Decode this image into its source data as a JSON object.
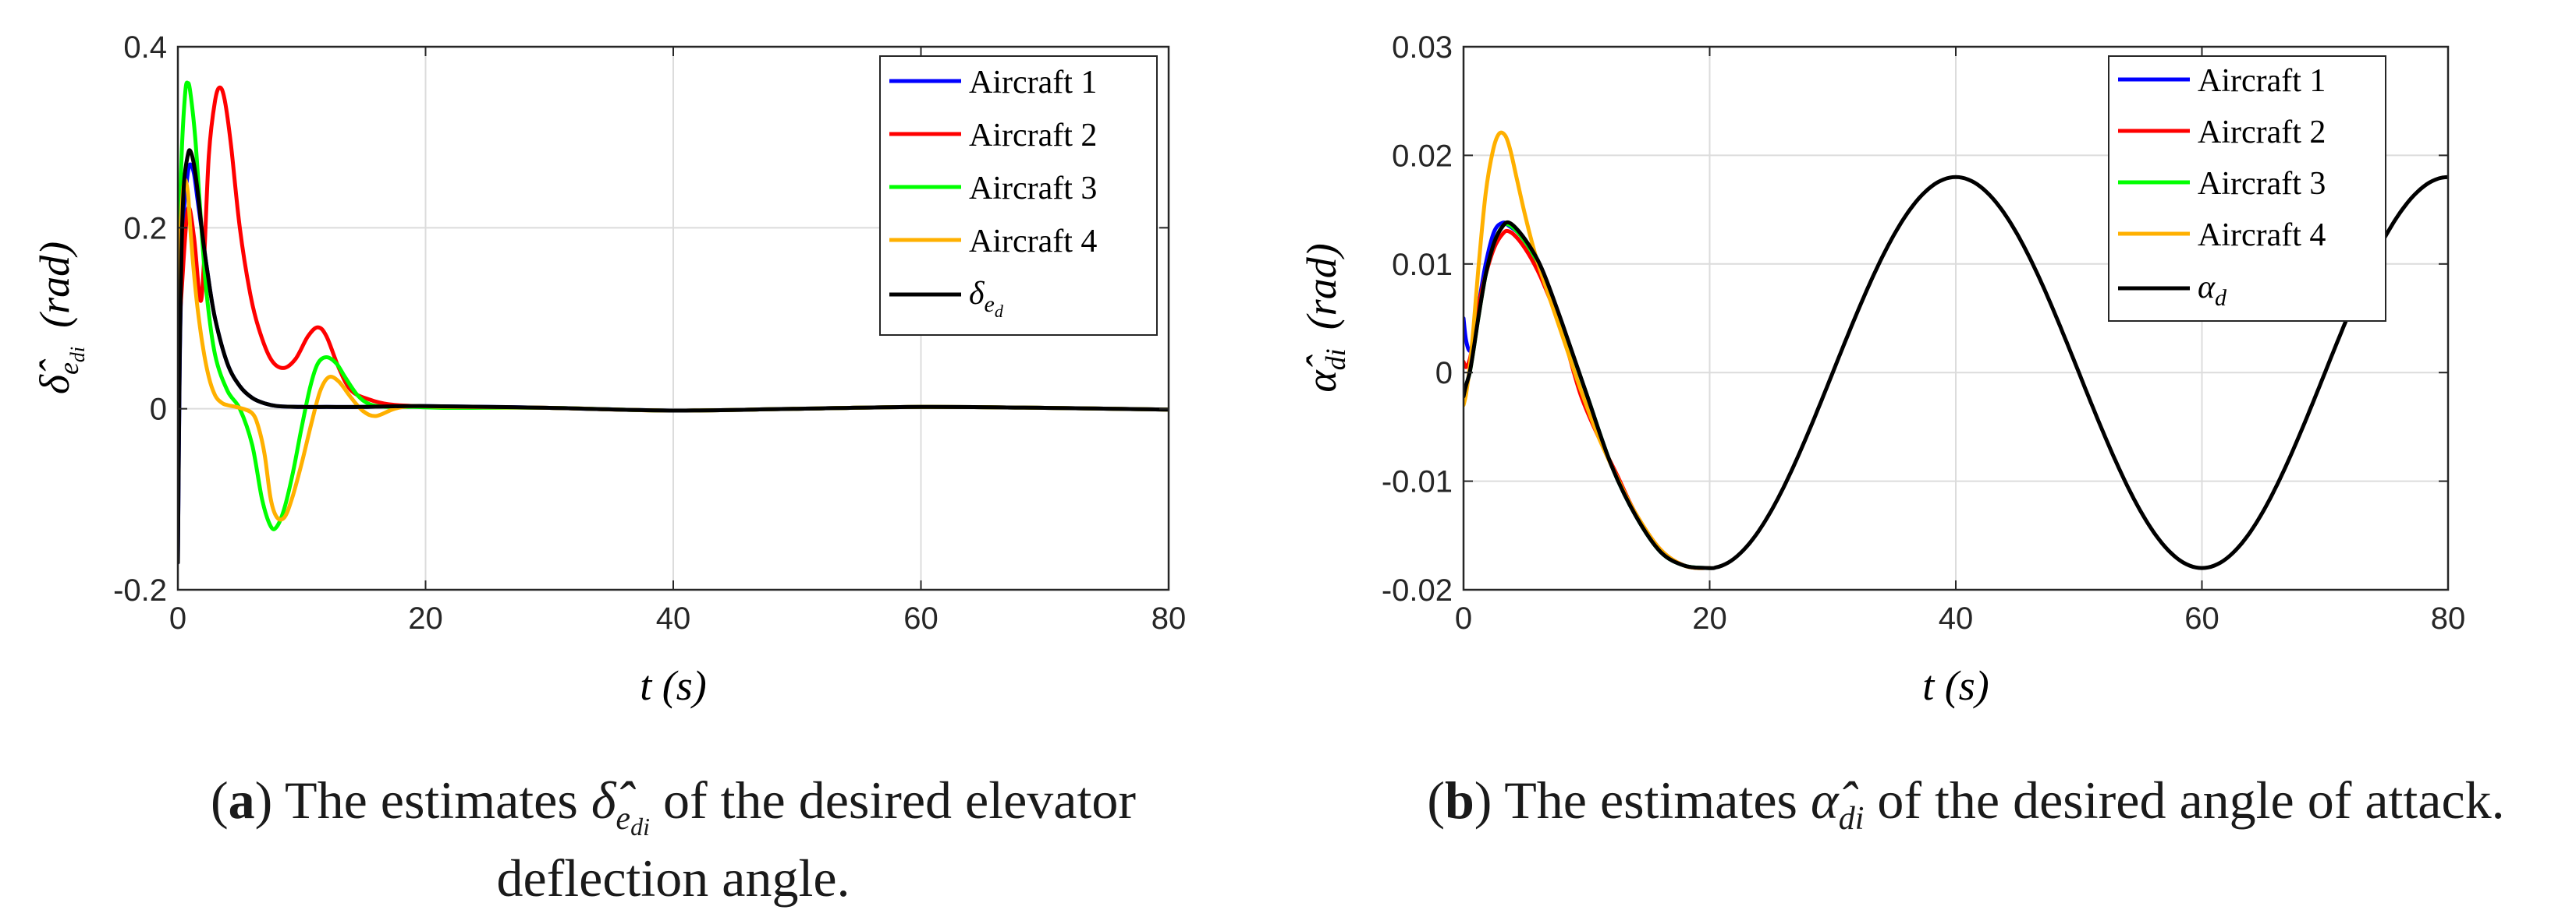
{
  "chart_data": [
    {
      "type": "line",
      "panel": "a",
      "caption": {
        "label": "a",
        "line1_pre": "The estimates ",
        "symbol": "δ̂̂",
        "symbol_sub": "e",
        "symbol_sub2": "di",
        "line1_post": " of the desired elevator",
        "line2": "deflection angle."
      },
      "xlabel": "t (s)",
      "ylabel": "δ̂",
      "ylabel_sub": "e",
      "ylabel_sub2": "di",
      "ylabel_unit": "(rad)",
      "xlim": [
        0,
        80
      ],
      "ylim": [
        -0.2,
        0.4
      ],
      "xticks": [
        0,
        20,
        40,
        60,
        80
      ],
      "yticks": [
        -0.2,
        0,
        0.2,
        0.4
      ],
      "xtick_labels": [
        "0",
        "20",
        "40",
        "60",
        "80"
      ],
      "ytick_labels": [
        "-0.2",
        "0",
        "0.2",
        "0.4"
      ],
      "grid": true,
      "legend_position": "top-right",
      "series": [
        {
          "name": "Aircraft 1",
          "color": "#0000ff",
          "x": [
            0,
            0.15,
            0.3,
            0.5,
            0.8,
            1.0,
            1.3,
            1.6,
            2.0,
            2.4,
            3.0,
            4.0,
            5.0,
            6.0,
            7.0,
            8.0,
            10,
            12,
            15,
            20,
            30,
            40,
            50,
            60,
            70,
            80
          ],
          "y": [
            -0.17,
            0.05,
            0.15,
            0.22,
            0.26,
            0.27,
            0.26,
            0.23,
            0.19,
            0.15,
            0.1,
            0.05,
            0.025,
            0.012,
            0.006,
            0.003,
            0.002,
            0.002,
            0.002,
            0.003,
            0.001,
            -0.002,
            0,
            0.002,
            0.001,
            -0.001
          ]
        },
        {
          "name": "Aircraft 2",
          "color": "#ff0000",
          "x": [
            0,
            0.3,
            0.8,
            1.3,
            1.8,
            2.1,
            2.5,
            3.0,
            3.4,
            3.8,
            4.3,
            5.0,
            5.8,
            6.5,
            7.5,
            8.5,
            9.5,
            10.5,
            11.3,
            12.0,
            13.0,
            14.0,
            15.5,
            17.0,
            19.0,
            22.0,
            30,
            40,
            50,
            60,
            70,
            80
          ],
          "y": [
            0.06,
            0.13,
            0.22,
            0.19,
            0.12,
            0.16,
            0.28,
            0.34,
            0.355,
            0.34,
            0.29,
            0.2,
            0.13,
            0.09,
            0.055,
            0.045,
            0.055,
            0.08,
            0.09,
            0.08,
            0.045,
            0.02,
            0.01,
            0.005,
            0.003,
            0.002,
            0.001,
            -0.002,
            0,
            0.002,
            0.001,
            -0.001
          ]
        },
        {
          "name": "Aircraft 3",
          "color": "#00ff00",
          "x": [
            0,
            0.3,
            0.6,
            0.8,
            1.0,
            1.4,
            1.8,
            2.3,
            3.0,
            4.0,
            5.0,
            6.0,
            6.8,
            7.5,
            8.0,
            8.6,
            9.3,
            10.0,
            10.7,
            11.3,
            12.0,
            12.8,
            13.5,
            14.5,
            15.5,
            17.0,
            19.0,
            22.0,
            30,
            40,
            50,
            60,
            70,
            80
          ],
          "y": [
            0.15,
            0.28,
            0.35,
            0.36,
            0.35,
            0.3,
            0.22,
            0.13,
            0.06,
            0.02,
            0.0,
            -0.04,
            -0.1,
            -0.13,
            -0.13,
            -0.11,
            -0.07,
            -0.02,
            0.025,
            0.05,
            0.057,
            0.05,
            0.035,
            0.015,
            0.005,
            0.002,
            0.002,
            0.001,
            0.001,
            -0.002,
            0,
            0.002,
            0.001,
            -0.001
          ]
        },
        {
          "name": "Aircraft 4",
          "color": "#ffb000",
          "x": [
            0,
            0.2,
            0.5,
            0.8,
            1.0,
            1.3,
            1.6,
            2.0,
            2.5,
            3.0,
            3.5,
            4.0,
            5.0,
            6.0,
            6.5,
            7.0,
            7.5,
            8.0,
            8.6,
            9.2,
            10.0,
            10.8,
            11.5,
            12.2,
            13.0,
            14.0,
            15.0,
            16.0,
            17.5,
            19.0,
            22.0,
            30,
            40,
            50,
            60,
            70,
            80
          ],
          "y": [
            0.06,
            0.19,
            0.25,
            0.24,
            0.2,
            0.15,
            0.11,
            0.07,
            0.035,
            0.015,
            0.007,
            0.004,
            0.001,
            -0.005,
            -0.02,
            -0.05,
            -0.1,
            -0.12,
            -0.12,
            -0.1,
            -0.06,
            -0.015,
            0.02,
            0.035,
            0.03,
            0.012,
            -0.003,
            -0.008,
            0.0,
            0.003,
            0.002,
            0.001,
            -0.002,
            0,
            0.002,
            0.001,
            -0.001
          ]
        },
        {
          "name": "δ",
          "name_sub": "e",
          "name_sub2": "d",
          "color": "#000000",
          "x": [
            0,
            0.15,
            0.3,
            0.5,
            0.8,
            1.0,
            1.3,
            1.6,
            2.0,
            2.4,
            3.0,
            4.0,
            5.0,
            6.0,
            7.0,
            8.0,
            10,
            12,
            15,
            20,
            30,
            40,
            50,
            60,
            70,
            80
          ],
          "y": [
            -0.17,
            0.06,
            0.18,
            0.25,
            0.28,
            0.285,
            0.27,
            0.24,
            0.19,
            0.15,
            0.1,
            0.05,
            0.025,
            0.012,
            0.006,
            0.003,
            0.002,
            0.002,
            0.002,
            0.003,
            0.001,
            -0.002,
            0,
            0.002,
            0.001,
            -0.001
          ]
        }
      ]
    },
    {
      "type": "line",
      "panel": "b",
      "caption": {
        "label": "b",
        "line1_pre": "The estimates ",
        "symbol": "α̂",
        "symbol_sub": "di",
        "line1_post": " of the desired angle of attack."
      },
      "xlabel": "t (s)",
      "ylabel": "α̂",
      "ylabel_sub": "di",
      "ylabel_unit": "(rad)",
      "xlim": [
        0,
        80
      ],
      "ylim": [
        -0.02,
        0.03
      ],
      "xticks": [
        0,
        20,
        40,
        60,
        80
      ],
      "yticks": [
        -0.02,
        -0.01,
        0,
        0.01,
        0.02,
        0.03
      ],
      "xtick_labels": [
        "0",
        "20",
        "40",
        "60",
        "80"
      ],
      "ytick_labels": [
        "-0.02",
        "-0.01",
        "0",
        "0.01",
        "0.02",
        "0.03"
      ],
      "grid": true,
      "legend_position": "top-right",
      "series": [
        {
          "name": "Aircraft 1",
          "color": "#0000ff",
          "x": [
            0,
            0.2,
            0.5,
            0.8,
            1.2,
            1.8,
            2.5,
            3.2,
            3.7,
            4.5,
            5.5,
            6.5,
            8.0,
            10.0,
            12.0,
            14.0,
            16.0,
            18.0,
            20.0
          ],
          "y": [
            0.005,
            0.003,
            0.002,
            0.003,
            0.006,
            0.01,
            0.013,
            0.0138,
            0.0135,
            0.0128,
            0.0112,
            0.009,
            0.0045,
            -0.002,
            -0.0085,
            -0.0132,
            -0.0165,
            -0.0178,
            -0.018
          ]
        },
        {
          "name": "Aircraft 2",
          "color": "#ff0000",
          "x": [
            0,
            0.2,
            0.5,
            0.8,
            1.2,
            1.8,
            2.5,
            3.2,
            3.7,
            4.5,
            5.5,
            6.5,
            8.0,
            9.5,
            11.0,
            12.5,
            14.0,
            16.0,
            18.0,
            20.0
          ],
          "y": [
            0.001,
            0.0005,
            0.0012,
            0.003,
            0.006,
            0.009,
            0.0115,
            0.0128,
            0.013,
            0.0122,
            0.0105,
            0.0082,
            0.0038,
            -0.002,
            -0.006,
            -0.0095,
            -0.013,
            -0.0163,
            -0.0178,
            -0.018
          ]
        },
        {
          "name": "Aircraft 3",
          "color": "#00ff00",
          "x": [
            0,
            0.2,
            0.5,
            0.8,
            1.2,
            1.8,
            2.5,
            3.2,
            3.7,
            4.5,
            5.5,
            6.5,
            8.0,
            10.0,
            12.0,
            14.0,
            16.0,
            18.0,
            20.0
          ],
          "y": [
            -0.002,
            -0.0012,
            0.0,
            0.002,
            0.005,
            0.009,
            0.012,
            0.0135,
            0.0136,
            0.0128,
            0.0112,
            0.009,
            0.0045,
            -0.002,
            -0.0085,
            -0.0132,
            -0.0165,
            -0.0178,
            -0.018
          ]
        },
        {
          "name": "Aircraft 4",
          "color": "#ffb000",
          "x": [
            0,
            0.2,
            0.5,
            0.8,
            1.2,
            1.8,
            2.4,
            2.9,
            3.4,
            3.8,
            4.3,
            5.0,
            5.8,
            6.8,
            8.0,
            9.5,
            11.0,
            12.5,
            14.0,
            16.0,
            18.0,
            20.0
          ],
          "y": [
            -0.003,
            -0.002,
            0.0005,
            0.004,
            0.0095,
            0.0165,
            0.0205,
            0.022,
            0.0218,
            0.0205,
            0.018,
            0.0145,
            0.011,
            0.0075,
            0.0035,
            -0.0015,
            -0.006,
            -0.0097,
            -0.013,
            -0.0163,
            -0.0178,
            -0.018
          ]
        },
        {
          "name": "α",
          "name_sub": "d",
          "color": "#000000",
          "x": [
            0,
            0.2,
            0.5,
            0.8,
            1.2,
            1.8,
            2.5,
            3.2,
            3.7,
            4.5,
            5.5,
            6.5,
            8.0,
            10.0,
            12.0,
            14.0,
            16.0,
            18.0,
            20.0
          ],
          "y": [
            -0.0022,
            -0.0012,
            0.0,
            0.002,
            0.005,
            0.009,
            0.012,
            0.0135,
            0.0138,
            0.013,
            0.0114,
            0.0092,
            0.0046,
            -0.002,
            -0.0085,
            -0.0132,
            -0.0165,
            -0.0178,
            -0.018
          ],
          "sin_tail": {
            "from": 20,
            "to": 80,
            "amplitude": 0.018,
            "period": 40,
            "peak_at": 40
          }
        }
      ]
    }
  ]
}
